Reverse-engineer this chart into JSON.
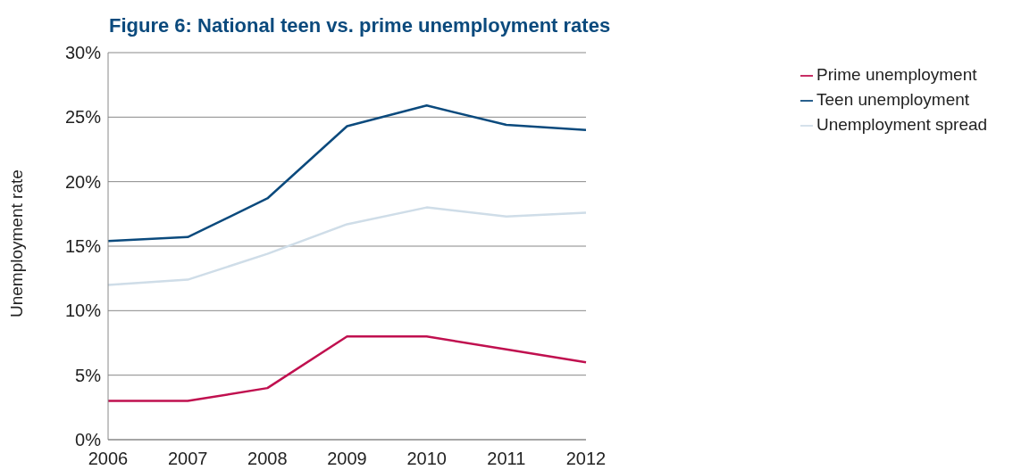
{
  "chart_data": {
    "type": "line",
    "title": "Figure 6: National teen vs. prime unemployment rates",
    "ylabel": "Unemployment rate",
    "categories": [
      "2006",
      "2007",
      "2008",
      "2009",
      "2010",
      "2011",
      "2012"
    ],
    "series": [
      {
        "name": "Teen unemployment",
        "color": "#0b4a7d",
        "values": [
          15.4,
          15.7,
          18.7,
          24.3,
          25.9,
          24.4,
          24.0
        ]
      },
      {
        "name": "Unemployment spread",
        "color": "#cfdde8",
        "values": [
          12.0,
          12.4,
          14.4,
          16.7,
          18.0,
          17.3,
          17.6
        ]
      },
      {
        "name": "Prime unemployment",
        "color": "#c0104f",
        "values": [
          3,
          3,
          4,
          8,
          8,
          7,
          6
        ]
      }
    ],
    "ylim": [
      0,
      30
    ],
    "yticks": [
      {
        "value": 0,
        "label": "0%"
      },
      {
        "value": 5,
        "label": "5%"
      },
      {
        "value": 10,
        "label": "10%"
      },
      {
        "value": 15,
        "label": "15%"
      },
      {
        "value": 20,
        "label": "20%"
      },
      {
        "value": 25,
        "label": "25%"
      },
      {
        "value": 30,
        "label": "30%"
      }
    ],
    "grid": "y",
    "legend": "top right",
    "marker": "none",
    "line_style": "solid"
  }
}
